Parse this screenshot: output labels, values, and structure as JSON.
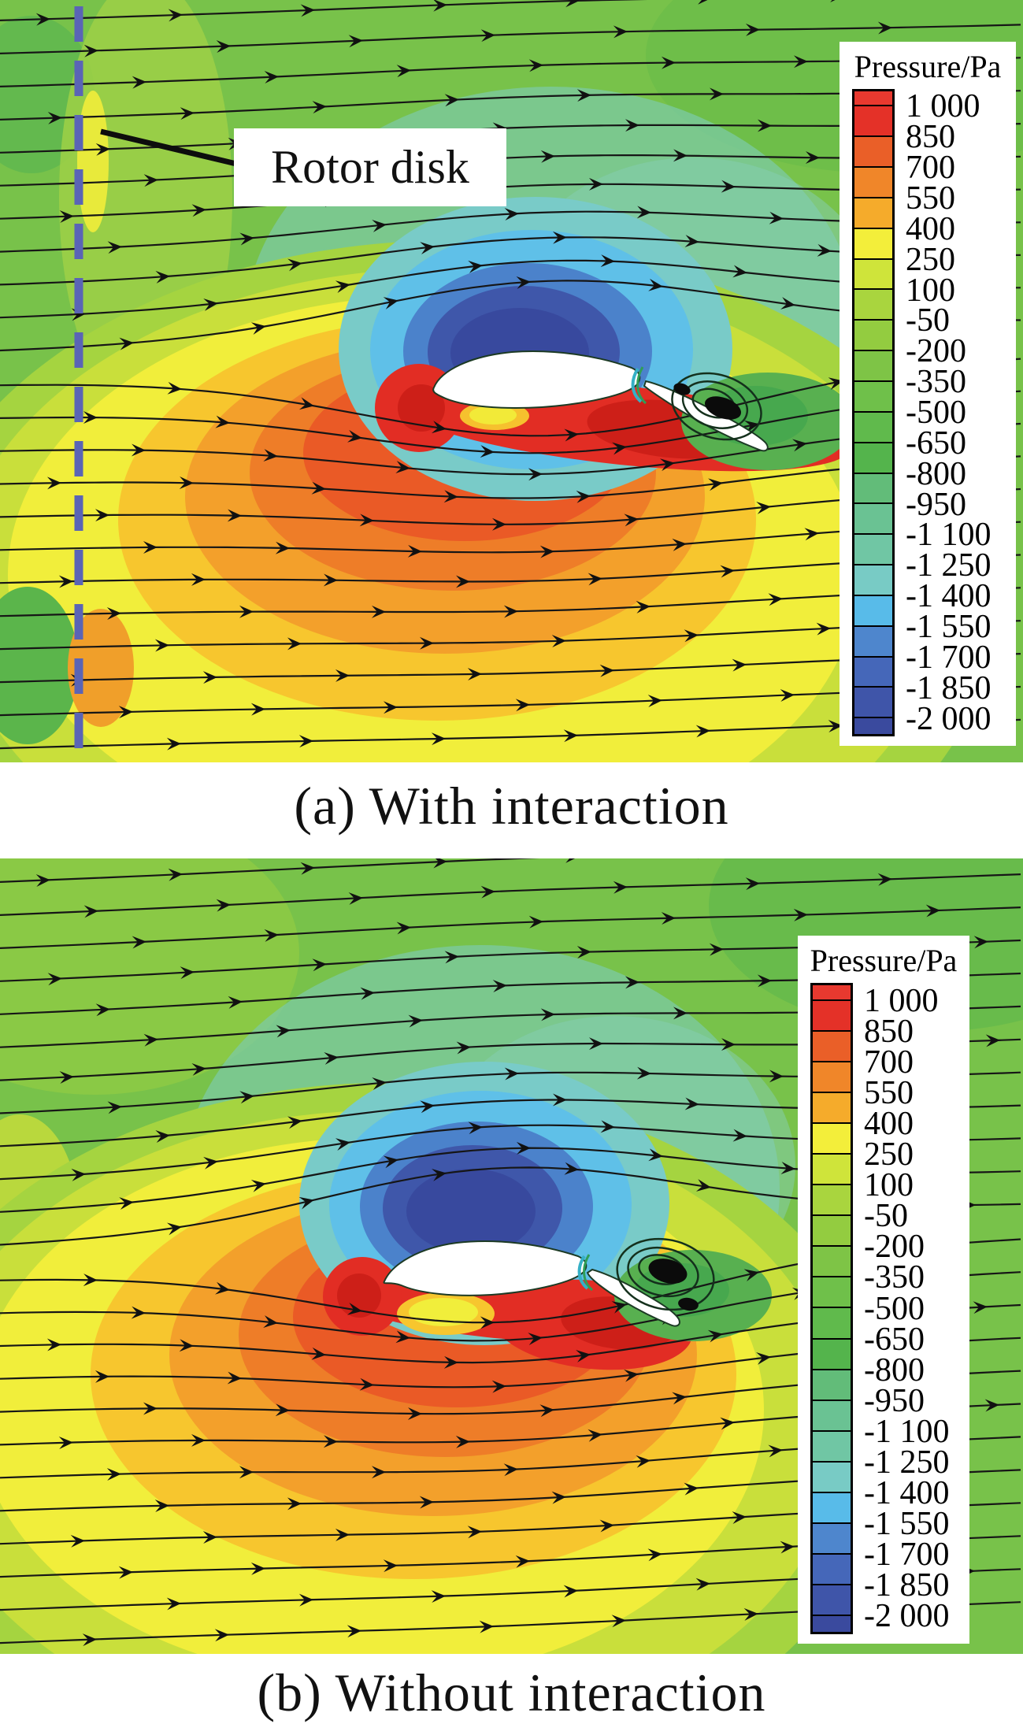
{
  "figure": {
    "panels": {
      "a": {
        "caption": "(a) With interaction",
        "annotation": "Rotor disk"
      },
      "b": {
        "caption": "(b) Without interaction"
      }
    },
    "legend": {
      "title": "Pressure/Pa",
      "values": [
        "1 000",
        "850",
        "700",
        "550",
        "400",
        "250",
        "100",
        "-50",
        "-200",
        "-350",
        "-500",
        "-650",
        "-800",
        "-950",
        "-1 100",
        "-1 250",
        "-1 400",
        "-1 550",
        "-1 700",
        "-1 850",
        "-2 000"
      ],
      "colors": [
        "#e8392f",
        "#e43128",
        "#ea5f28",
        "#f08629",
        "#f5ab2b",
        "#f3ee3a",
        "#cfe43a",
        "#a9d53e",
        "#93cc40",
        "#7ec446",
        "#6fc04a",
        "#60ba4c",
        "#54b44c",
        "#62bc79",
        "#6ac293",
        "#70c6a4",
        "#78cbc5",
        "#58bbe9",
        "#4e86cd",
        "#4567b9",
        "#3f55a9",
        "#3a4a9e"
      ]
    },
    "accent_colors": {
      "rotor_disk_line": "#5a64b6",
      "streamline": "#161616",
      "high_pressure_red": "#e22d24",
      "low_pressure_navy": "#38499e",
      "background_green": "#78c24a",
      "yellow_region": "#f1ee3b"
    }
  },
  "chart_data": [
    {
      "type": "heatmap",
      "title": "(a) With interaction",
      "field": "pressure",
      "units": "Pa",
      "colorbar_title": "Pressure/Pa",
      "levels": [
        1000,
        850,
        700,
        550,
        400,
        250,
        100,
        -50,
        -200,
        -350,
        -500,
        -650,
        -800,
        -950,
        -1100,
        -1250,
        -1400,
        -1550,
        -1700,
        -1850,
        -2000
      ],
      "annotations": [
        "Rotor disk"
      ],
      "features": [
        "vertical dashed rotor-disk line at left",
        "streamlines flowing left to right with arrowheads",
        "low-pressure (blue) suction region above airfoil",
        "high-pressure (yellow/orange/red) region below airfoil",
        "recirculating vortex behind trailing-edge flap"
      ]
    },
    {
      "type": "heatmap",
      "title": "(b) Without interaction",
      "field": "pressure",
      "units": "Pa",
      "colorbar_title": "Pressure/Pa",
      "levels": [
        1000,
        850,
        700,
        550,
        400,
        250,
        100,
        -50,
        -200,
        -350,
        -500,
        -650,
        -800,
        -950,
        -1100,
        -1250,
        -1400,
        -1550,
        -1700,
        -1850,
        -2000
      ],
      "annotations": [],
      "features": [
        "streamlines flowing left to right with arrowheads",
        "low-pressure (blue) suction region above airfoil",
        "high-pressure (yellow/orange/red) region below airfoil",
        "recirculating vortex behind trailing-edge flap"
      ]
    }
  ]
}
